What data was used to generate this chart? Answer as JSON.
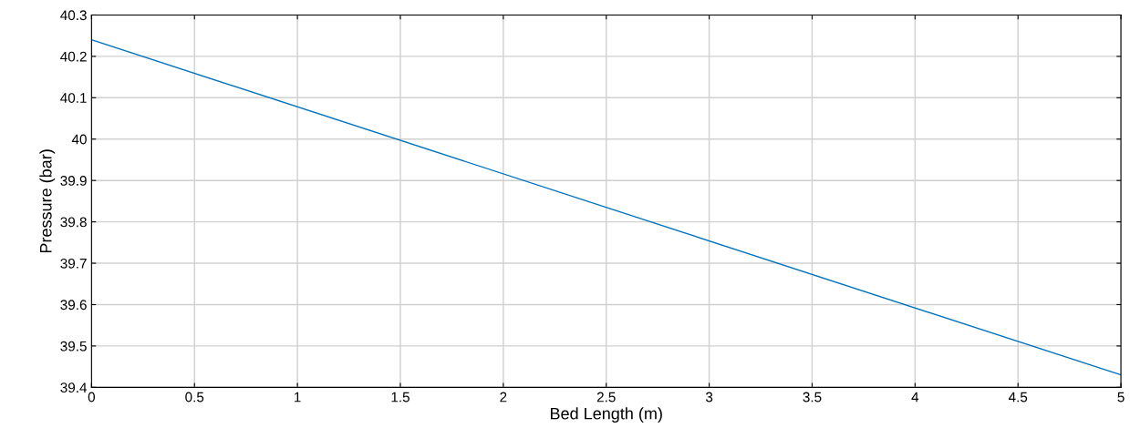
{
  "chart_data": {
    "type": "line",
    "xlabel": "Bed Length (m)",
    "ylabel": "Pressure (bar)",
    "series": [
      {
        "color": "#0072bd",
        "x": [
          0,
          5
        ],
        "values": [
          40.24,
          39.43
        ]
      }
    ],
    "xlim": [
      0,
      5
    ],
    "xticks": [
      0,
      0.5,
      1,
      1.5,
      2,
      2.5,
      3,
      3.5,
      4,
      4.5,
      5
    ],
    "ylim": [
      39.4,
      40.3
    ],
    "yticks": [
      39.4,
      39.5,
      39.6,
      39.7,
      39.8,
      39.9,
      40,
      40.1,
      40.2,
      40.3
    ],
    "grid": true,
    "marker": "none",
    "line_style": "solid"
  }
}
